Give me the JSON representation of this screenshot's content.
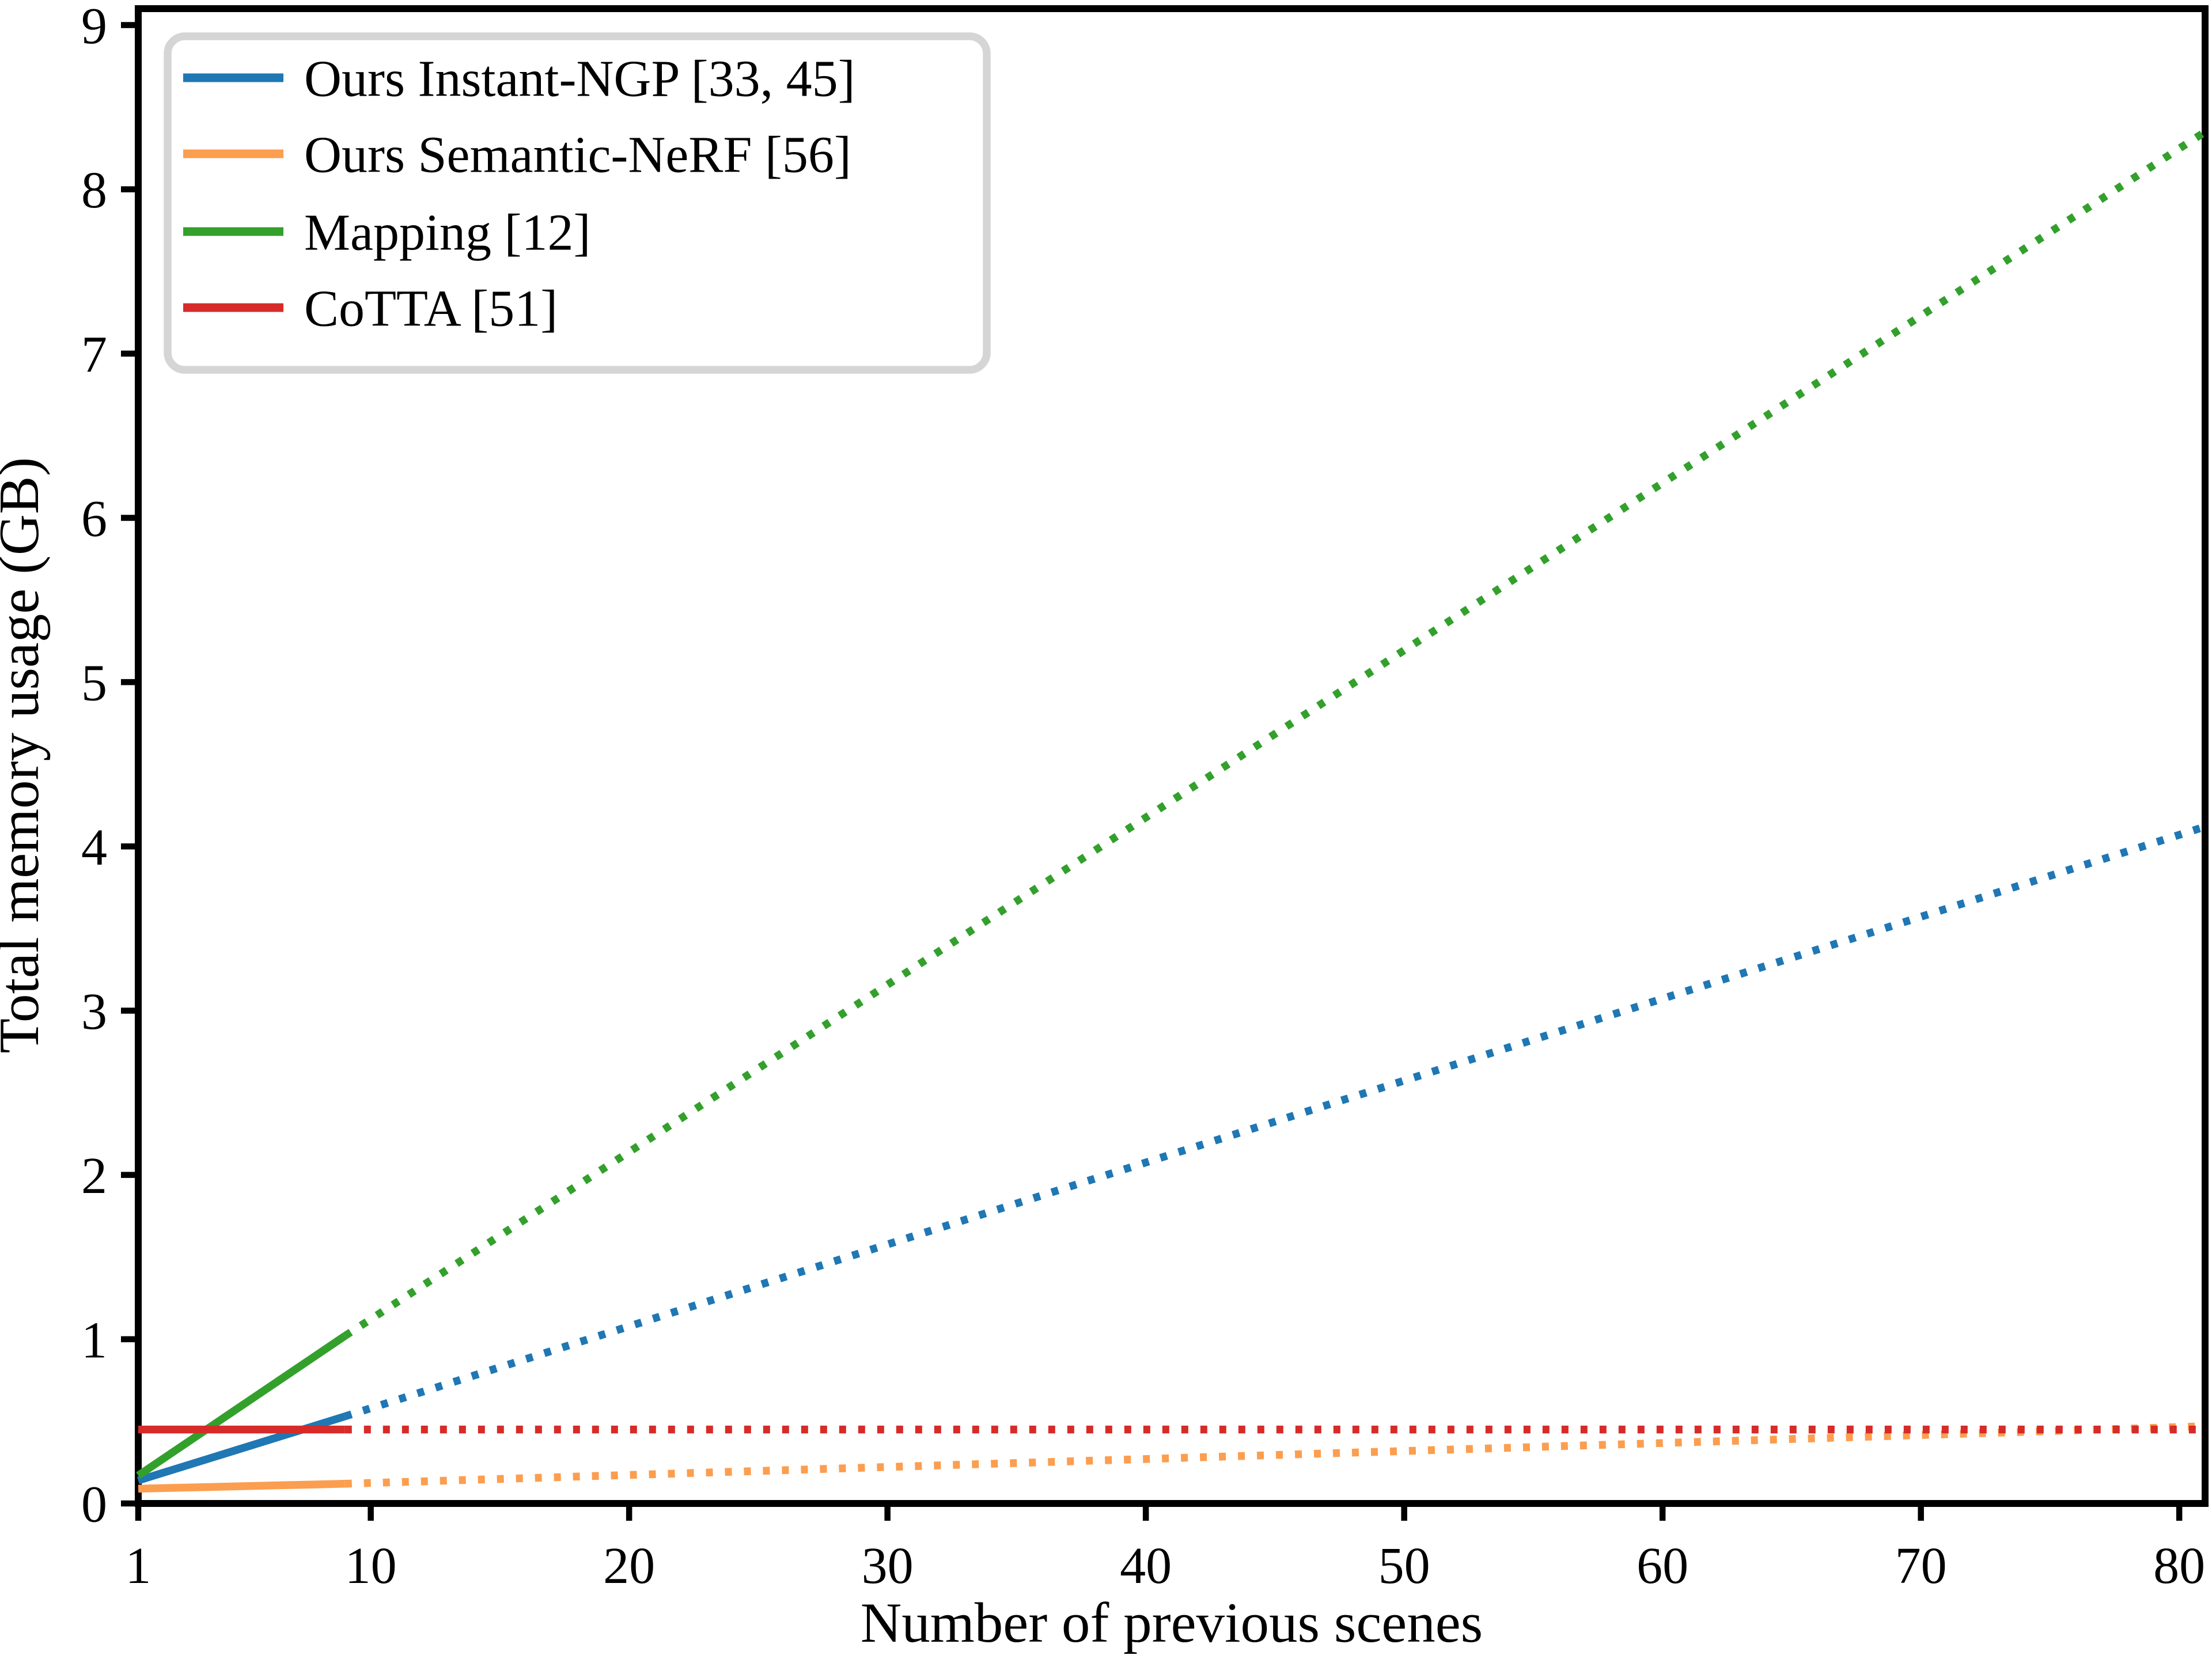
{
  "figure": {
    "background": "#ffffff",
    "axis_color": "#000000",
    "legend_border_color": "#d5d5d5"
  },
  "chart_data": {
    "type": "line",
    "title": "",
    "xlabel": "Number of previous scenes",
    "ylabel": "Total memory usage (GB)",
    "xlim": [
      1,
      81
    ],
    "ylim": [
      0,
      9.1
    ],
    "xticks": [
      1,
      10,
      20,
      30,
      40,
      50,
      60,
      70,
      80
    ],
    "yticks": [
      0,
      1,
      2,
      3,
      4,
      5,
      6,
      7,
      8,
      9
    ],
    "grid": false,
    "legend_position": "upper left",
    "series": [
      {
        "id": "instant-ngp",
        "name": "Ours Instant-NGP [33, 45]",
        "color": "#1f77b4",
        "solid_segment": [
          [
            1,
            0.14
          ],
          [
            9,
            0.53
          ]
        ],
        "dotted_segment": [
          [
            9,
            0.53
          ],
          [
            81,
            4.12
          ]
        ]
      },
      {
        "id": "semantic-nerf",
        "name": "Ours Semantic-NeRF [56]",
        "color": "#fc9e4f",
        "solid_segment": [
          [
            1,
            0.09
          ],
          [
            9,
            0.12
          ]
        ],
        "dotted_segment": [
          [
            9,
            0.12
          ],
          [
            81,
            0.47
          ]
        ]
      },
      {
        "id": "mapping",
        "name": "Mapping [12]",
        "color": "#33a02c",
        "solid_segment": [
          [
            1,
            0.17
          ],
          [
            9,
            1.02
          ]
        ],
        "dotted_segment": [
          [
            9,
            1.02
          ],
          [
            81,
            8.35
          ]
        ]
      },
      {
        "id": "cotta",
        "name": "CoTTA [51]",
        "color": "#d62b28",
        "solid_segment": [
          [
            1,
            0.45
          ],
          [
            9,
            0.45
          ]
        ],
        "dotted_segment": [
          [
            9,
            0.45
          ],
          [
            81,
            0.45
          ]
        ]
      }
    ]
  }
}
